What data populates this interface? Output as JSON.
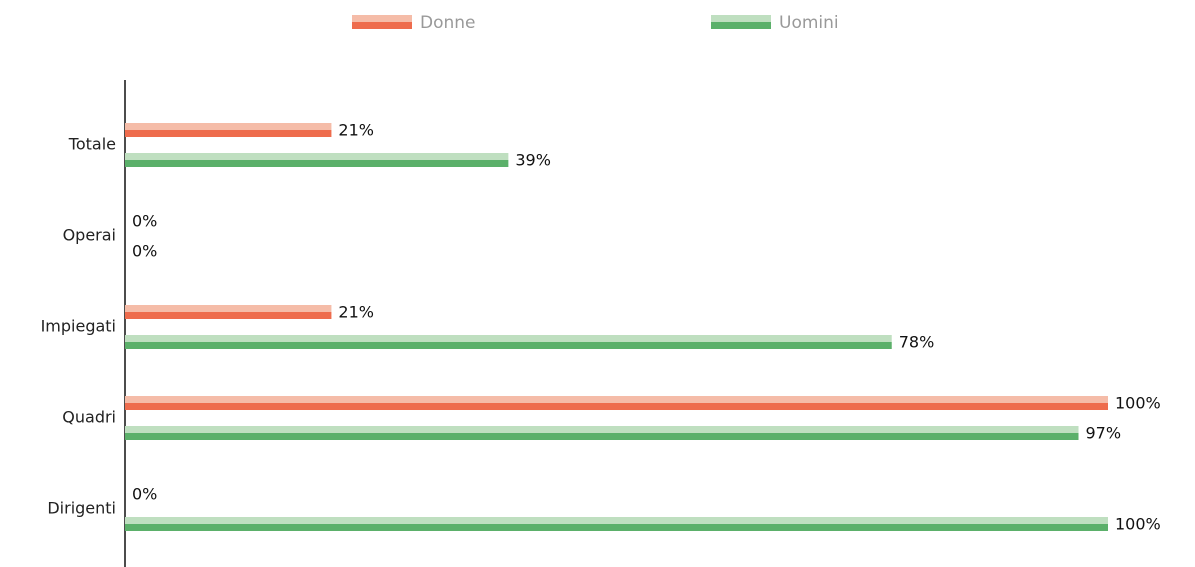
{
  "chart_data": {
    "type": "bar",
    "orientation": "horizontal",
    "categories": [
      "Totale",
      "Operai",
      "Impiegati",
      "Quadri",
      "Dirigenti"
    ],
    "xlim": [
      0,
      100
    ],
    "series": [
      {
        "name": "Donne",
        "color": "#ee6c4d",
        "highlight": "#f5bca8",
        "values": [
          21,
          0,
          21,
          100,
          0
        ],
        "value_labels": [
          "21%",
          "0%",
          "21%",
          "100%",
          "0%"
        ]
      },
      {
        "name": "Uomini",
        "color": "#5bb06a",
        "highlight": "#bfdfc0",
        "values": [
          39,
          0,
          78,
          97,
          100
        ],
        "value_labels": [
          "39%",
          "0%",
          "78%",
          "97%",
          "100%"
        ]
      }
    ]
  }
}
